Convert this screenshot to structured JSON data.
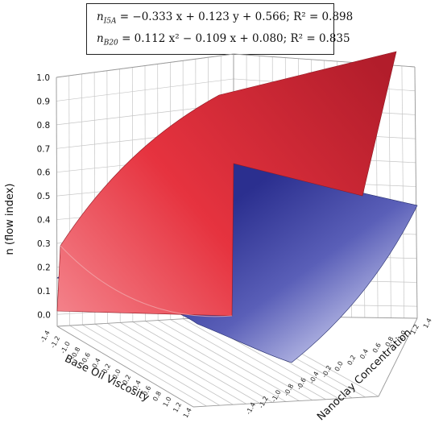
{
  "equations": [
    {
      "symbol": "n",
      "subscript": "I5A",
      "rhs": "= −0.333 x + 0.123 y + 0.566; R² = 0.898"
    },
    {
      "symbol": "n",
      "subscript": "B20",
      "rhs": "= 0.112 x² − 0.109 x + 0.080; R² = 0.835"
    }
  ],
  "chart_data": {
    "type": "surface",
    "zlabel": "n (flow index)",
    "xlabel": "Base Oil Viscosity",
    "ylabel": "Nanoclay Concentration",
    "zlim": [
      -0.05,
      1.0
    ],
    "z_ticks": [
      "0.0",
      "0.1",
      "0.2",
      "0.3",
      "0.4",
      "0.5",
      "0.6",
      "0.7",
      "0.8",
      "0.9",
      "1.0"
    ],
    "x_ticks": [
      "-1.4",
      "-1.2",
      "-1.0",
      "-0.8",
      "-0.6",
      "-0.4",
      "-0.2",
      "0.0",
      "0.2",
      "0.4",
      "0.6",
      "0.8",
      "1.0",
      "1.2",
      "1.4"
    ],
    "y_ticks": [
      "-1.4",
      "-1.2",
      "-1.0",
      "-0.8",
      "-0.6",
      "-0.4",
      "-0.2",
      "0.0",
      "0.2",
      "0.4",
      "0.6",
      "0.8",
      "1.0",
      "1.2",
      "1.4"
    ],
    "grid": true,
    "series": [
      {
        "subscript": "I5A",
        "color": "#dd2a35",
        "model": "planar",
        "coef": {
          "x": -0.333,
          "y": 0.123,
          "c": 0.566
        },
        "r2": 0.898
      },
      {
        "subscript": "B20",
        "color": "#34399b",
        "model": "quadratic",
        "coef": {
          "x2": 0.112,
          "x": -0.109,
          "c": 0.08
        },
        "r2": 0.835
      }
    ]
  }
}
